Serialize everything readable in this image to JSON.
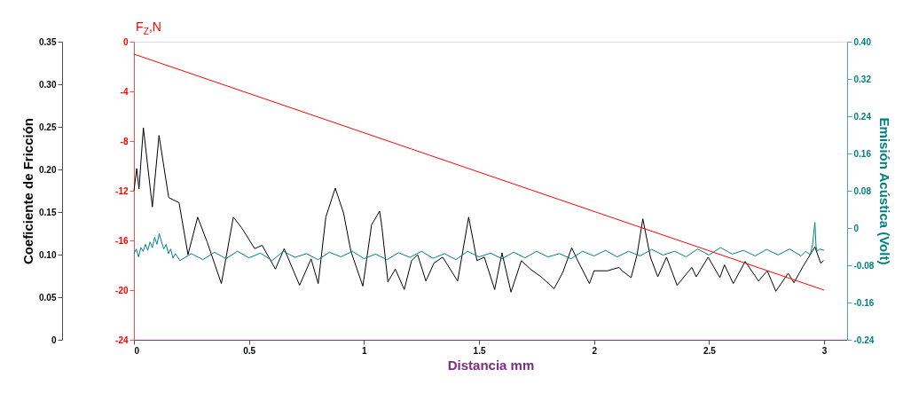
{
  "chart_data": {
    "type": "line",
    "xlabel": "Distancia mm",
    "ylabel": "Coeficiente de Fricción",
    "y2label": "Emisión Acústica (Volt)",
    "y3label": "F$_{Z}$,N",
    "xlim": [
      0,
      3.1
    ],
    "xticks": [
      0,
      0.5,
      1,
      1.5,
      2,
      2.5,
      3
    ],
    "ylim": [
      0,
      0.35
    ],
    "yticks": [
      0,
      0.05,
      {
        "value": 0.1,
        "label": "0.10"
      },
      0.15,
      {
        "value": 0.2,
        "label": "0.20"
      },
      0.25,
      {
        "value": 0.3,
        "label": "0.30"
      },
      0.35
    ],
    "y2lim": [
      -0.24,
      0.4
    ],
    "y2ticks": [
      -0.24,
      -0.16,
      -0.08,
      0,
      0.08,
      0.16,
      0.24,
      0.32,
      {
        "value": 0.4,
        "label": "0.40"
      }
    ],
    "y3lim": [
      -24,
      0
    ],
    "y3ticks": [
      -24,
      -20,
      -16,
      -12,
      -8,
      -4,
      0
    ],
    "grid": false,
    "marker": "none",
    "line_style": "solid",
    "series": [
      {
        "color": "#000000",
        "axis": "y",
        "x": [
          0,
          0.012,
          0.022,
          0.041,
          0.08,
          0.109,
          0.151,
          0.196,
          0.235,
          0.277,
          0.318,
          0.38,
          0.432,
          0.467,
          0.525,
          0.557,
          0.615,
          0.653,
          0.72,
          0.77,
          0.801,
          0.834,
          0.875,
          0.911,
          0.943,
          0.995,
          1.033,
          1.068,
          1.078,
          1.104,
          1.136,
          1.175,
          1.207,
          1.233,
          1.269,
          1.304,
          1.342,
          1.407,
          1.455,
          1.491,
          1.523,
          1.568,
          1.6,
          1.639,
          1.684,
          1.723,
          1.774,
          1.826,
          1.864,
          1.903,
          1.929,
          1.98,
          2.0,
          2.058,
          2.109,
          2.122,
          2.161,
          2.187,
          2.212,
          2.245,
          2.277,
          2.315,
          2.361,
          2.425,
          2.444,
          2.496,
          2.547,
          2.567,
          2.605,
          2.657,
          2.715,
          2.753,
          2.79,
          2.844,
          2.869,
          2.908,
          2.96,
          2.985,
          2.998
        ],
        "values": [
          0.175,
          0.201,
          0.177,
          0.249,
          0.156,
          0.24,
          0.167,
          0.161,
          0.1,
          0.144,
          0.115,
          0.066,
          0.144,
          0.132,
          0.107,
          0.111,
          0.083,
          0.107,
          0.064,
          0.095,
          0.066,
          0.144,
          0.178,
          0.149,
          0.104,
          0.063,
          0.135,
          0.151,
          0.132,
          0.068,
          0.083,
          0.059,
          0.093,
          0.1,
          0.069,
          0.09,
          0.097,
          0.069,
          0.144,
          0.093,
          0.097,
          0.059,
          0.102,
          0.056,
          0.093,
          0.083,
          0.073,
          0.06,
          0.079,
          0.108,
          0.093,
          0.066,
          0.081,
          0.081,
          0.085,
          0.081,
          0.073,
          0.1,
          0.142,
          0.097,
          0.074,
          0.097,
          0.064,
          0.085,
          0.074,
          0.097,
          0.073,
          0.088,
          0.066,
          0.092,
          0.069,
          0.081,
          0.057,
          0.078,
          0.067,
          0.086,
          0.109,
          0.09,
          0.093
        ]
      },
      {
        "color": "#008080",
        "axis": "y2",
        "x": [
          0,
          0.01,
          0.02,
          0.03,
          0.04,
          0.05,
          0.06,
          0.07,
          0.08,
          0.09,
          0.1,
          0.11,
          0.12,
          0.13,
          0.14,
          0.15,
          0.16,
          0.17,
          0.18,
          0.2,
          0.25,
          0.3,
          0.35,
          0.4,
          0.45,
          0.5,
          0.55,
          0.6,
          0.65,
          0.7,
          0.75,
          0.8,
          0.85,
          0.9,
          0.95,
          1.0,
          1.05,
          1.1,
          1.15,
          1.2,
          1.25,
          1.3,
          1.35,
          1.4,
          1.45,
          1.5,
          1.55,
          1.6,
          1.65,
          1.7,
          1.75,
          1.8,
          1.85,
          1.9,
          1.95,
          2.0,
          2.05,
          2.1,
          2.15,
          2.2,
          2.25,
          2.3,
          2.35,
          2.4,
          2.45,
          2.5,
          2.55,
          2.6,
          2.65,
          2.7,
          2.75,
          2.8,
          2.85,
          2.9,
          2.92,
          2.94,
          2.95,
          2.96,
          2.965,
          2.97,
          2.98,
          3.0
        ],
        "values": [
          -0.055,
          -0.045,
          -0.062,
          -0.042,
          -0.05,
          -0.035,
          -0.048,
          -0.03,
          -0.042,
          -0.02,
          -0.035,
          -0.012,
          -0.03,
          -0.045,
          -0.035,
          -0.055,
          -0.045,
          -0.065,
          -0.055,
          -0.07,
          -0.055,
          -0.068,
          -0.052,
          -0.066,
          -0.05,
          -0.064,
          -0.054,
          -0.07,
          -0.05,
          -0.063,
          -0.055,
          -0.068,
          -0.052,
          -0.062,
          -0.05,
          -0.066,
          -0.056,
          -0.068,
          -0.053,
          -0.063,
          -0.05,
          -0.065,
          -0.055,
          -0.068,
          -0.05,
          -0.062,
          -0.054,
          -0.066,
          -0.052,
          -0.064,
          -0.05,
          -0.062,
          -0.055,
          -0.066,
          -0.05,
          -0.06,
          -0.048,
          -0.062,
          -0.05,
          -0.06,
          -0.046,
          -0.058,
          -0.05,
          -0.062,
          -0.045,
          -0.058,
          -0.042,
          -0.056,
          -0.048,
          -0.06,
          -0.046,
          -0.058,
          -0.045,
          -0.06,
          -0.05,
          -0.058,
          -0.035,
          0.012,
          -0.04,
          -0.05,
          -0.045,
          -0.048
        ]
      },
      {
        "color": "#ff0000",
        "axis": "y3",
        "x": [
          0,
          3
        ],
        "values": [
          -1.0,
          -20.0
        ]
      }
    ]
  }
}
